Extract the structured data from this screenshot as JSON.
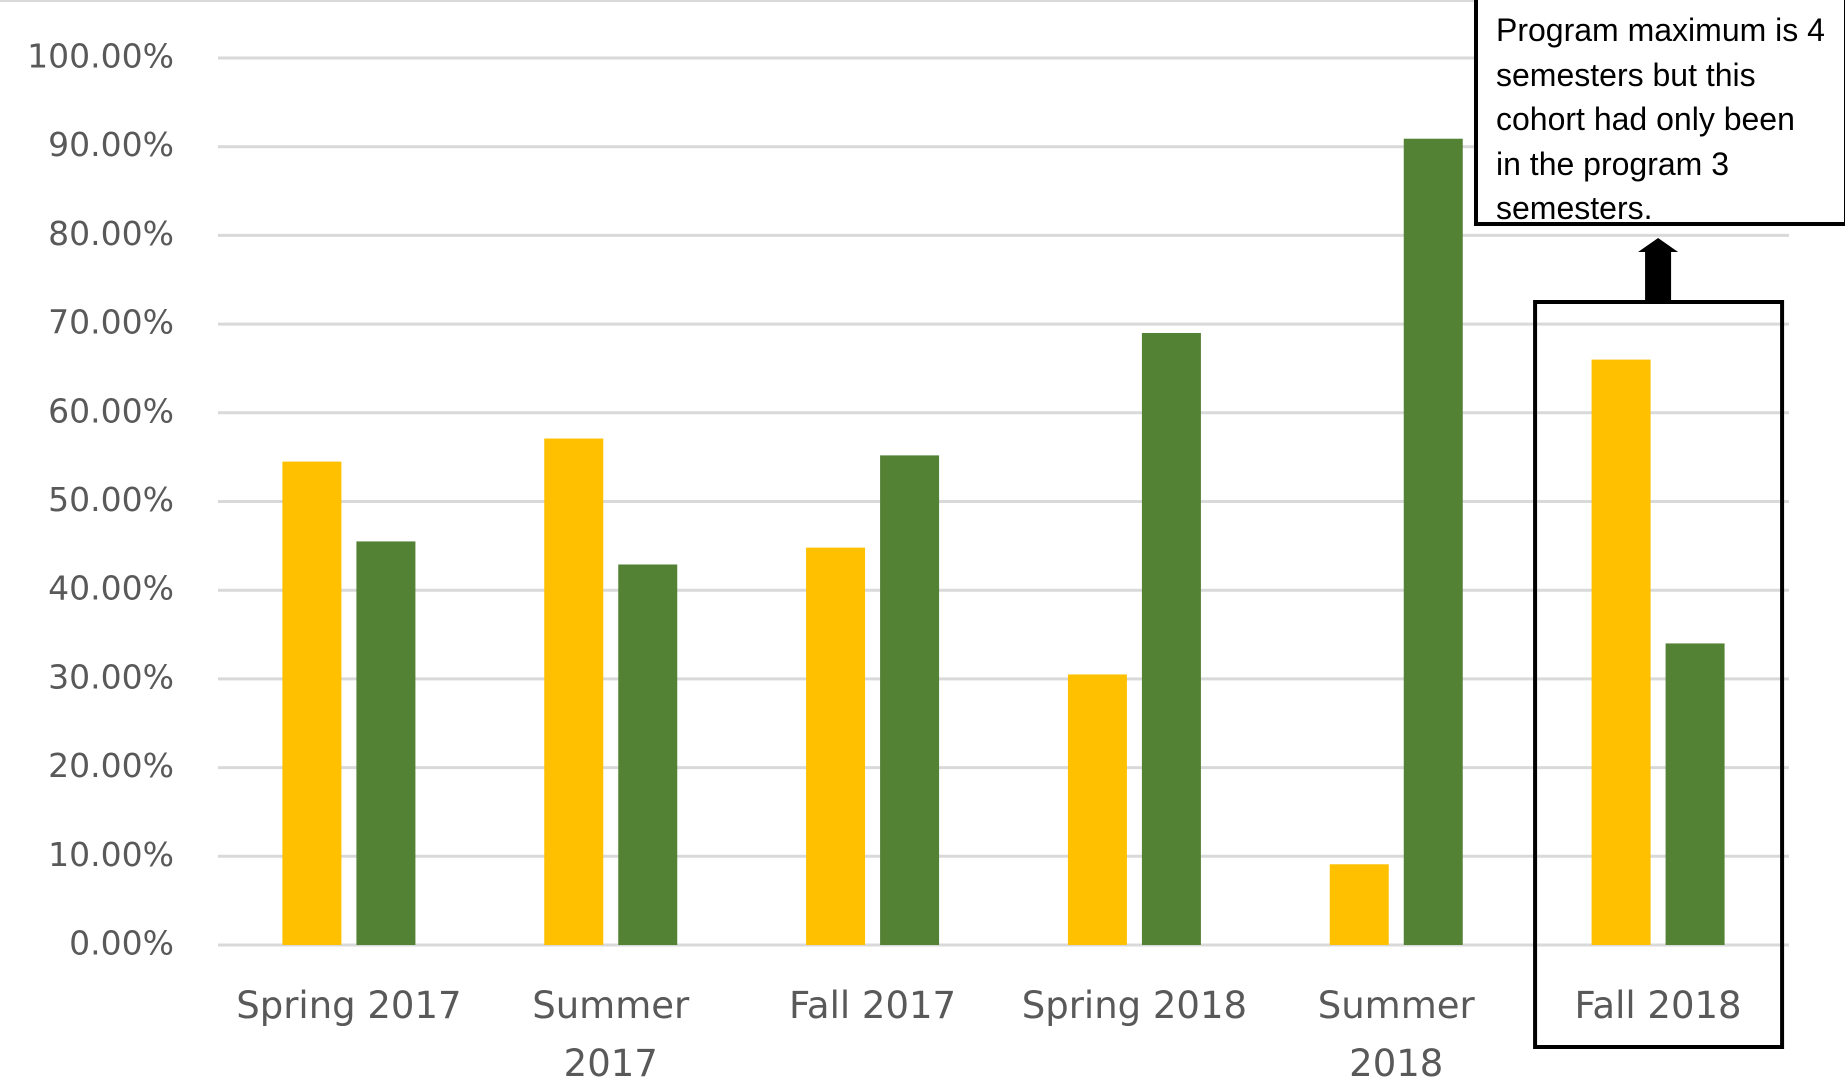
{
  "chart_data": {
    "type": "bar",
    "categories": [
      "Spring 2017",
      "Summer\n2017",
      "Fall 2017",
      "Spring 2018",
      "Summer\n2018",
      "Fall 2018"
    ],
    "series": [
      {
        "color": "#FFC000",
        "values": [
          54.5,
          57.1,
          44.8,
          30.5,
          9.1,
          66.0
        ]
      },
      {
        "color": "#548235",
        "values": [
          45.5,
          42.9,
          55.2,
          69.0,
          90.9,
          34.0
        ]
      }
    ],
    "ylim": [
      0,
      100
    ],
    "yticks": [
      {
        "value": 0,
        "label": "0.00%"
      },
      {
        "value": 10,
        "label": "10.00%"
      },
      {
        "value": 20,
        "label": "20.00%"
      },
      {
        "value": 30,
        "label": "30.00%"
      },
      {
        "value": 40,
        "label": "40.00%"
      },
      {
        "value": 50,
        "label": "50.00%"
      },
      {
        "value": 60,
        "label": "60.00%"
      },
      {
        "value": 70,
        "label": "70.00%"
      },
      {
        "value": 80,
        "label": "80.00%"
      },
      {
        "value": 90,
        "label": "90.00%"
      },
      {
        "value": 100,
        "label": "100.00%"
      }
    ],
    "grid": true,
    "annotation": "Program maximum is 4 semesters but this cohort had only been in the program 3 semesters."
  }
}
